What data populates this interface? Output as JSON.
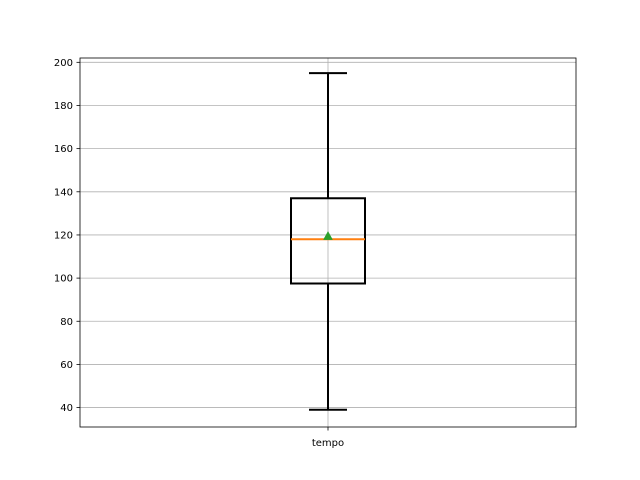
{
  "chart_data": {
    "type": "box",
    "title": "",
    "xlabel": "",
    "ylabel": "",
    "ylim": [
      31,
      202
    ],
    "yticks": [
      40,
      60,
      80,
      100,
      120,
      140,
      160,
      180,
      200
    ],
    "grid": true,
    "categories": [
      "tempo"
    ],
    "boxes": [
      {
        "label": "tempo",
        "whisker_low": 39,
        "q1": 97.5,
        "median": 118,
        "mean": 119.5,
        "q3": 137,
        "whisker_high": 195
      }
    ],
    "colors": {
      "box": "#000000",
      "median": "#ff7f0e",
      "mean": "#2ca02c",
      "grid": "#b0b0b0"
    }
  }
}
